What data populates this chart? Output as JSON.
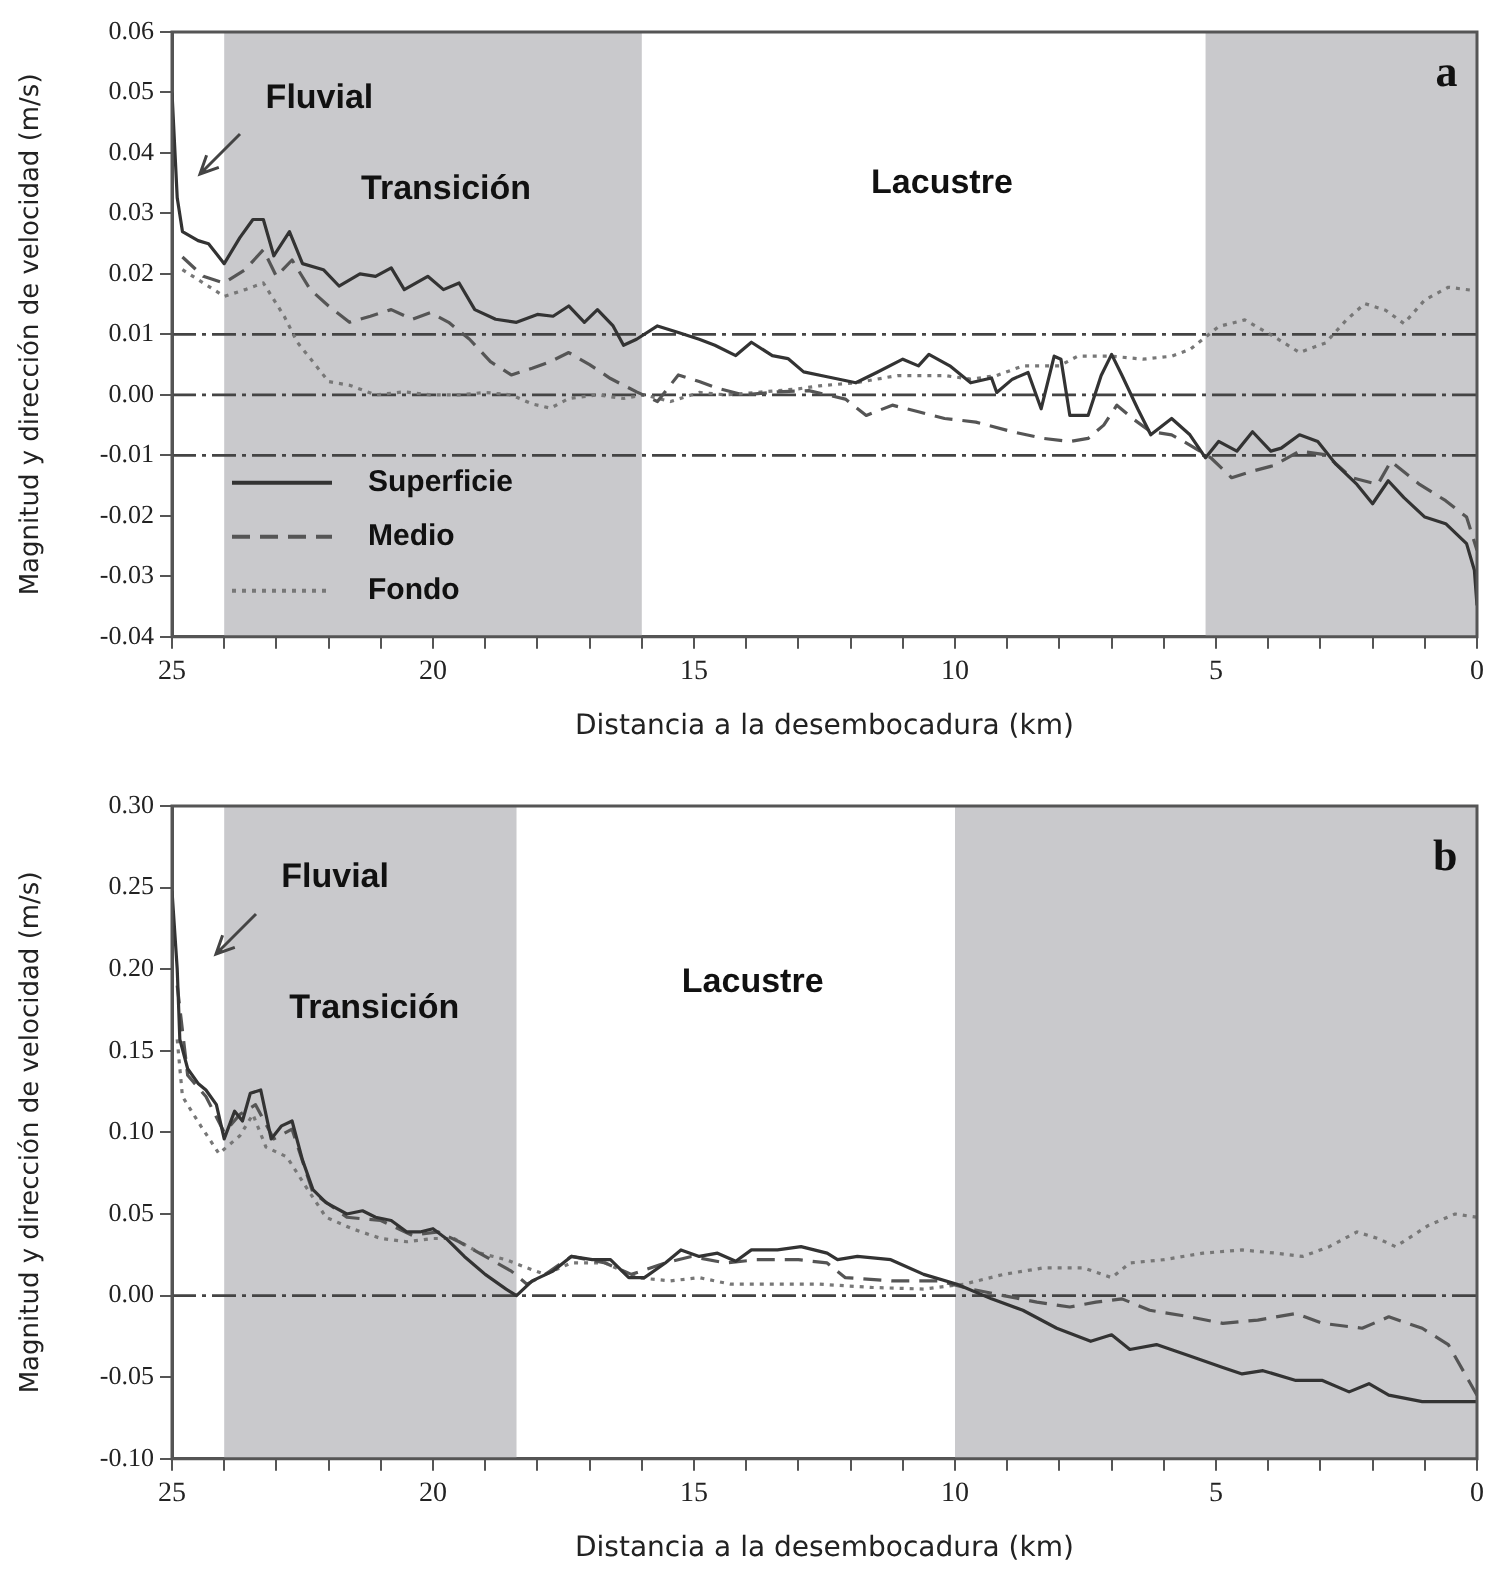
{
  "chart_data": [
    {
      "type": "line",
      "xlabel": "Distancia a la desembocadura (km)",
      "ylabel": "Magnitud y dirección de velocidad (m/s)",
      "xlim": [
        25,
        0
      ],
      "ylim": [
        -0.04,
        0.06
      ],
      "xticks": [
        25,
        {
          "value": 24,
          "label": null
        },
        {
          "value": 23,
          "label": null
        },
        {
          "value": 22,
          "label": null
        },
        {
          "value": 21,
          "label": null
        },
        20,
        {
          "value": 19,
          "label": null
        },
        {
          "value": 18,
          "label": null
        },
        {
          "value": 17,
          "label": null
        },
        {
          "value": 16,
          "label": null
        },
        15,
        {
          "value": 14,
          "label": null
        },
        {
          "value": 13,
          "label": null
        },
        {
          "value": 12,
          "label": null
        },
        {
          "value": 11,
          "label": null
        },
        10,
        {
          "value": 9,
          "label": null
        },
        {
          "value": 8,
          "label": null
        },
        {
          "value": 7,
          "label": null
        },
        {
          "value": 6,
          "label": null
        },
        5,
        {
          "value": 4,
          "label": null
        },
        {
          "value": 3,
          "label": null
        },
        {
          "value": 2,
          "label": null
        },
        {
          "value": 1,
          "label": null
        },
        0
      ],
      "yticks": [
        -0.04,
        -0.03,
        -0.02,
        -0.01,
        {
          "value": 0,
          "label": "0.00"
        },
        0.01,
        0.02,
        0.03,
        0.04,
        0.05,
        0.06
      ],
      "legend": "bottom left",
      "marker": "none",
      "bands": [
        {
          "axis": "x",
          "from": 24,
          "to": 16,
          "color": "#c9c9cc"
        },
        {
          "axis": "x",
          "from": 5.2,
          "to": 0,
          "color": "#c9c9cc"
        }
      ],
      "ref_lines": [
        {
          "axis": "y",
          "value": 0.01,
          "color": "#444444",
          "line_style": "dashed"
        },
        {
          "axis": "y",
          "value": 0,
          "color": "#444444",
          "line_style": "dashed"
        },
        {
          "axis": "y",
          "value": -0.01,
          "color": "#444444",
          "line_style": "dashed"
        }
      ],
      "annotations": [
        "Fluvial",
        "Transición",
        "Lacustre",
        "a"
      ],
      "series": [
        {
          "name": "Superficie",
          "color": "#333333",
          "line_style": "solid",
          "x": [
            25,
            24.9,
            24.8,
            24.5,
            24.3,
            24,
            23.7,
            23.45,
            23.25,
            23.05,
            22.75,
            22.5,
            22.1,
            21.8,
            21.4,
            21.1,
            20.8,
            20.55,
            20.1,
            19.8,
            19.5,
            19.2,
            18.8,
            18.4,
            18,
            17.7,
            17.4,
            17.1,
            16.85,
            16.55,
            16.35,
            16.1,
            15.7,
            15.3,
            14.9,
            14.6,
            14.2,
            13.9,
            13.5,
            13.2,
            12.9,
            12.45,
            11.9,
            11.5,
            11,
            10.7,
            10.5,
            10.1,
            9.7,
            9.3,
            9.2,
            8.9,
            8.6,
            8.35,
            8.1,
            7.97,
            7.8,
            7.45,
            7.2,
            7,
            6.8,
            6.5,
            6.25,
            5.85,
            5.5,
            5.2,
            4.95,
            4.6,
            4.3,
            3.95,
            3.75,
            3.4,
            3.05,
            2.7,
            2.3,
            2,
            1.7,
            1.4,
            1,
            0.6,
            0.2,
            0.05,
            0
          ],
          "values": [
            0.05,
            0.0326,
            0.027,
            0.0255,
            0.025,
            0.0217,
            0.026,
            0.029,
            0.029,
            0.023,
            0.027,
            0.0217,
            0.0207,
            0.018,
            0.02,
            0.0196,
            0.021,
            0.0174,
            0.0196,
            0.0174,
            0.0185,
            0.0141,
            0.0125,
            0.012,
            0.0133,
            0.013,
            0.0147,
            0.012,
            0.0141,
            0.0114,
            0.0082,
            0.0092,
            0.0114,
            0.0103,
            0.0092,
            0.0082,
            0.0065,
            0.0087,
            0.0065,
            0.006,
            0.0038,
            0.003,
            0.002,
            0.0037,
            0.0059,
            0.0048,
            0.0067,
            0.0048,
            0.002,
            0.0028,
            0.0004,
            0.0026,
            0.0037,
            -0.0023,
            0.0064,
            0.0059,
            -0.0034,
            -0.0034,
            0.0032,
            0.0067,
            0.0032,
            -0.0023,
            -0.0066,
            -0.0039,
            -0.0066,
            -0.0104,
            -0.0077,
            -0.0093,
            -0.0061,
            -0.0093,
            -0.0088,
            -0.0066,
            -0.0077,
            -0.0115,
            -0.0148,
            -0.018,
            -0.0142,
            -0.017,
            -0.0202,
            -0.0213,
            -0.0246,
            -0.029,
            -0.0348
          ]
        },
        {
          "name": "Medio",
          "color": "#555555",
          "line_style": "dashed",
          "x": [
            24.8,
            24.4,
            24,
            23.6,
            23.25,
            23,
            22.7,
            22.35,
            22,
            21.6,
            21.2,
            20.8,
            20.4,
            20.05,
            19.7,
            19.3,
            18.9,
            18.5,
            18.1,
            17.75,
            17.4,
            17,
            16.6,
            16.1,
            15.7,
            15.3,
            14.9,
            14.55,
            14.05,
            13.4,
            12.8,
            12.1,
            11.7,
            11.2,
            10.7,
            10.2,
            9.6,
            8.9,
            8.3,
            7.8,
            7.45,
            7.15,
            6.9,
            6.6,
            6.25,
            5.85,
            5.5,
            5.1,
            4.7,
            4.3,
            3.9,
            3.4,
            2.9,
            2.4,
            1.9,
            1.65,
            1.1,
            0.6,
            0.2,
            0
          ],
          "values": [
            0.0228,
            0.0196,
            0.0185,
            0.0207,
            0.024,
            0.0196,
            0.0223,
            0.0174,
            0.0147,
            0.012,
            0.013,
            0.0141,
            0.0125,
            0.0136,
            0.012,
            0.0092,
            0.0055,
            0.0033,
            0.0044,
            0.0055,
            0.007,
            0.005,
            0.0027,
            0.0005,
            -0.0011,
            0.0033,
            0.0022,
            0.0011,
            0,
            0.0005,
            0.0007,
            -0.0007,
            -0.0034,
            -0.0017,
            -0.0028,
            -0.0039,
            -0.0045,
            -0.0061,
            -0.0072,
            -0.0077,
            -0.0072,
            -0.005,
            -0.0017,
            -0.0039,
            -0.0061,
            -0.0066,
            -0.0083,
            -0.0104,
            -0.0137,
            -0.0126,
            -0.0117,
            -0.0093,
            -0.0099,
            -0.0137,
            -0.0148,
            -0.011,
            -0.0148,
            -0.0175,
            -0.0202,
            -0.0257
          ]
        },
        {
          "name": "Fondo",
          "color": "#777777",
          "line_style": "dotted",
          "x": [
            24.8,
            24.4,
            24,
            23.6,
            23.25,
            22.85,
            22.6,
            22.35,
            22,
            21.6,
            21.1,
            20.55,
            20.05,
            19.5,
            19,
            18.5,
            18.1,
            17.75,
            17.4,
            16.85,
            16.35,
            15.95,
            15.45,
            14.9,
            14.4,
            13.8,
            13,
            12.6,
            11.9,
            11.1,
            10.2,
            9.7,
            9.2,
            8.7,
            8,
            7.65,
            7,
            6.4,
            5.85,
            5.5,
            4.95,
            4.45,
            3.9,
            3.4,
            2.9,
            2.5,
            2.15,
            1.75,
            1.4,
            1,
            0.55,
            0.1
          ],
          "values": [
            0.0207,
            0.0185,
            0.0163,
            0.0174,
            0.0185,
            0.013,
            0.0087,
            0.006,
            0.0022,
            0.0016,
            0,
            0.0005,
            0,
            0,
            0.0004,
            0,
            -0.0015,
            -0.0022,
            -0.0006,
            0,
            -0.0006,
            0,
            -0.0011,
            0.0004,
            0,
            0.0004,
            0.001,
            0.0015,
            0.002,
            0.0032,
            0.0032,
            0.0026,
            0.0032,
            0.0048,
            0.0048,
            0.0064,
            0.0064,
            0.0059,
            0.0064,
            0.0075,
            0.0113,
            0.0124,
            0.0097,
            0.007,
            0.0086,
            0.0124,
            0.0151,
            0.014,
            0.0118,
            0.0157,
            0.0178,
            0.0173
          ]
        }
      ]
    },
    {
      "type": "line",
      "xlabel": "Distancia a la desembocadura (km)",
      "ylabel": "Magnitud y dirección de velocidad (m/s)",
      "xlim": [
        25,
        0
      ],
      "ylim": [
        -0.1,
        0.3
      ],
      "xticks": [
        25,
        {
          "value": 24,
          "label": null
        },
        {
          "value": 23,
          "label": null
        },
        {
          "value": 22,
          "label": null
        },
        {
          "value": 21,
          "label": null
        },
        20,
        {
          "value": 19,
          "label": null
        },
        {
          "value": 18,
          "label": null
        },
        {
          "value": 17,
          "label": null
        },
        {
          "value": 16,
          "label": null
        },
        15,
        {
          "value": 14,
          "label": null
        },
        {
          "value": 13,
          "label": null
        },
        {
          "value": 12,
          "label": null
        },
        {
          "value": 11,
          "label": null
        },
        10,
        {
          "value": 9,
          "label": null
        },
        {
          "value": 8,
          "label": null
        },
        {
          "value": 7,
          "label": null
        },
        {
          "value": 6,
          "label": null
        },
        5,
        {
          "value": 4,
          "label": null
        },
        {
          "value": 3,
          "label": null
        },
        {
          "value": 2,
          "label": null
        },
        {
          "value": 1,
          "label": null
        },
        0
      ],
      "yticks": [
        {
          "value": -0.1,
          "label": "-0.10"
        },
        -0.05,
        {
          "value": 0,
          "label": "0.00"
        },
        0.05,
        {
          "value": 0.1,
          "label": "0.10"
        },
        0.15,
        {
          "value": 0.2,
          "label": "0.20"
        },
        0.25,
        {
          "value": 0.3,
          "label": "0.30"
        }
      ],
      "marker": "none",
      "bands": [
        {
          "axis": "x",
          "from": 24,
          "to": 18.4,
          "color": "#c9c9cc"
        },
        {
          "axis": "x",
          "from": 10,
          "to": 0,
          "color": "#c9c9cc"
        }
      ],
      "ref_lines": [
        {
          "axis": "y",
          "value": 0,
          "color": "#444444",
          "line_style": "dashed"
        }
      ],
      "annotations": [
        "Fluvial",
        "Transición",
        "Lacustre",
        "b"
      ],
      "series": [
        {
          "color": "#333333",
          "line_style": "solid",
          "x": [
            25,
            24.9,
            24.85,
            24.7,
            24.5,
            24.35,
            24.15,
            24,
            23.8,
            23.65,
            23.5,
            23.3,
            23.1,
            22.9,
            22.7,
            22.5,
            22.3,
            22.05,
            21.65,
            21.35,
            21.1,
            20.8,
            20.5,
            20.25,
            20,
            19.75,
            19.4,
            19,
            18.6,
            18.4,
            18.1,
            17.7,
            17.35,
            16.95,
            16.6,
            16.25,
            15.95,
            15.55,
            15.25,
            14.9,
            14.55,
            14.2,
            13.9,
            13.4,
            12.95,
            12.45,
            12.25,
            11.87,
            11.23,
            10.6,
            9.96,
            9.3,
            8.7,
            8.05,
            7.4,
            7,
            6.65,
            6.14,
            5.5,
            4.87,
            4.5,
            4.1,
            3.47,
            2.96,
            2.45,
            2.07,
            1.69,
            1.05,
            0.42,
            0
          ],
          "values": [
            0.248,
            0.2,
            0.157,
            0.139,
            0.13,
            0.126,
            0.117,
            0.096,
            0.113,
            0.107,
            0.124,
            0.126,
            0.096,
            0.104,
            0.107,
            0.083,
            0.065,
            0.057,
            0.05,
            0.052,
            0.048,
            0.046,
            0.039,
            0.039,
            0.041,
            0.035,
            0.024,
            0.013,
            0.004,
            0,
            0.009,
            0.015,
            0.024,
            0.022,
            0.022,
            0.011,
            0.011,
            0.02,
            0.028,
            0.024,
            0.026,
            0.021,
            0.028,
            0.028,
            0.03,
            0.026,
            0.022,
            0.024,
            0.022,
            0.013,
            0.007,
            -0.002,
            -0.009,
            -0.02,
            -0.028,
            -0.024,
            -0.033,
            -0.03,
            -0.037,
            -0.044,
            -0.048,
            -0.046,
            -0.052,
            -0.052,
            -0.059,
            -0.054,
            -0.061,
            -0.065,
            -0.065,
            -0.065
          ]
        },
        {
          "color": "#555555",
          "line_style": "dashed",
          "x": [
            24.9,
            24.7,
            24.35,
            24,
            23.7,
            23.4,
            23.05,
            22.7,
            22.3,
            21.65,
            21,
            20.4,
            19.9,
            19.5,
            19,
            18.5,
            18.2,
            17.85,
            17.35,
            16.7,
            16.2,
            15.55,
            15.05,
            14.4,
            13.8,
            13,
            12.45,
            12.1,
            11.2,
            10.3,
            9.7,
            9.07,
            8.43,
            7.8,
            7.3,
            6.8,
            6.27,
            5.5,
            4.87,
            4.2,
            3.47,
            2.96,
            2.2,
            1.69,
            1.05,
            0.55,
            0.16,
            0
          ],
          "values": [
            0.19,
            0.135,
            0.122,
            0.1,
            0.111,
            0.117,
            0.096,
            0.102,
            0.063,
            0.048,
            0.046,
            0.037,
            0.039,
            0.033,
            0.024,
            0.015,
            0.007,
            0.013,
            0.024,
            0.02,
            0.013,
            0.02,
            0.024,
            0.02,
            0.022,
            0.022,
            0.02,
            0.011,
            0.009,
            0.009,
            0.004,
            0,
            -0.004,
            -0.007,
            -0.004,
            -0.002,
            -0.009,
            -0.013,
            -0.017,
            -0.015,
            -0.011,
            -0.017,
            -0.02,
            -0.013,
            -0.02,
            -0.03,
            -0.052,
            -0.061
          ]
        },
        {
          "color": "#777777",
          "line_style": "dotted",
          "x": [
            24.9,
            24.8,
            24.45,
            24.1,
            23.7,
            23.45,
            23.2,
            22.8,
            22.4,
            22.05,
            21.55,
            21,
            20.5,
            20,
            19.6,
            19.1,
            18.6,
            18.2,
            17.85,
            17.35,
            16.7,
            16.1,
            15.45,
            14.9,
            14.3,
            13.5,
            12.6,
            11.6,
            10.6,
            9.83,
            9.07,
            8.3,
            7.54,
            7,
            6.65,
            6,
            5.25,
            4.5,
            3.85,
            3.34,
            2.83,
            2.3,
            1.9,
            1.56,
            0.93,
            0.42,
            0
          ],
          "values": [
            0.157,
            0.122,
            0.104,
            0.087,
            0.098,
            0.111,
            0.091,
            0.085,
            0.065,
            0.048,
            0.041,
            0.035,
            0.033,
            0.035,
            0.035,
            0.026,
            0.022,
            0.017,
            0.013,
            0.02,
            0.02,
            0.011,
            0.009,
            0.011,
            0.007,
            0.007,
            0.007,
            0.005,
            0.004,
            0.007,
            0.013,
            0.017,
            0.017,
            0.011,
            0.02,
            0.022,
            0.026,
            0.028,
            0.026,
            0.024,
            0.03,
            0.039,
            0.035,
            0.03,
            0.043,
            0.05,
            0.048
          ]
        }
      ]
    }
  ]
}
